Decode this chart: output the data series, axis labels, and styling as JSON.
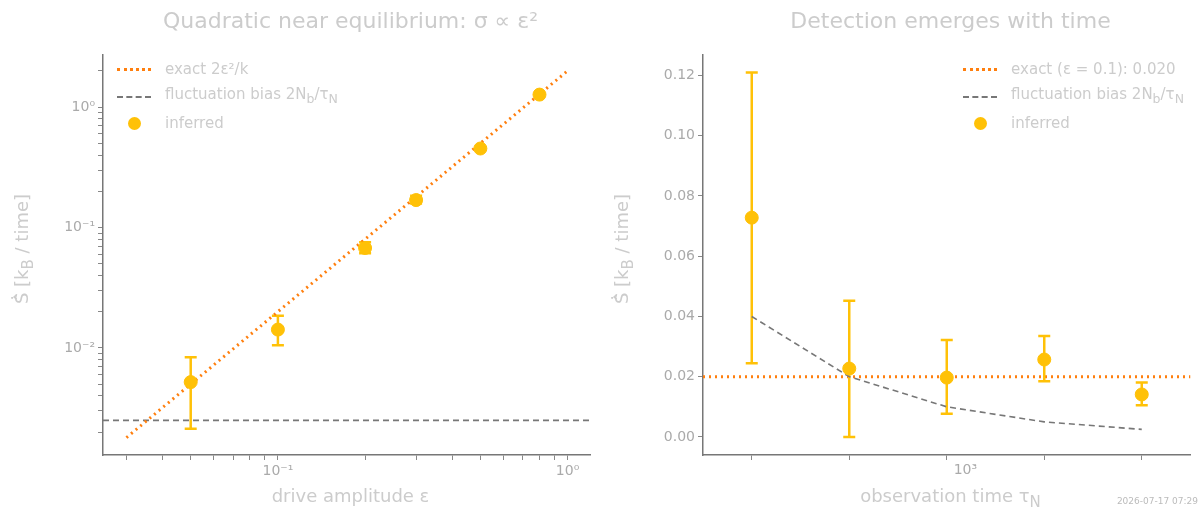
{
  "chart_data": [
    {
      "type": "scatter",
      "title": "Quadratic near equilibrium: σ ∝ ε²",
      "xlabel": "drive amplitude ε",
      "ylabel": "Ṡ̂ [k$_{B}$ / time]",
      "log": "xy",
      "grid": false,
      "legend": "top left",
      "xlim": [
        0.0249,
        1.2
      ],
      "ylim": [
        0.00129,
        2.74
      ],
      "xticks": [
        {
          "value": 0.03,
          "label": null
        },
        {
          "value": 0.04,
          "label": null
        },
        {
          "value": 0.05,
          "label": null
        },
        {
          "value": 0.06,
          "label": null
        },
        {
          "value": 0.07,
          "label": null
        },
        {
          "value": 0.08,
          "label": null
        },
        {
          "value": 0.09,
          "label": null
        },
        {
          "value": 0.1,
          "label": "10⁻¹"
        },
        {
          "value": 0.2,
          "label": null
        },
        {
          "value": 0.3,
          "label": null
        },
        {
          "value": 0.4,
          "label": null
        },
        {
          "value": 0.5,
          "label": null
        },
        {
          "value": 0.6,
          "label": null
        },
        {
          "value": 0.7,
          "label": null
        },
        {
          "value": 0.8,
          "label": null
        },
        {
          "value": 0.9,
          "label": null
        },
        {
          "value": 1,
          "label": "10⁰"
        }
      ],
      "yticks": [
        {
          "value": 0.002,
          "label": null
        },
        {
          "value": 0.003,
          "label": null
        },
        {
          "value": 0.004,
          "label": null
        },
        {
          "value": 0.005,
          "label": null
        },
        {
          "value": 0.006,
          "label": null
        },
        {
          "value": 0.007,
          "label": null
        },
        {
          "value": 0.008,
          "label": null
        },
        {
          "value": 0.009,
          "label": null
        },
        {
          "value": 0.01,
          "label": "10⁻²"
        },
        {
          "value": 0.02,
          "label": null
        },
        {
          "value": 0.03,
          "label": null
        },
        {
          "value": 0.04,
          "label": null
        },
        {
          "value": 0.05,
          "label": null
        },
        {
          "value": 0.06,
          "label": null
        },
        {
          "value": 0.07,
          "label": null
        },
        {
          "value": 0.08,
          "label": null
        },
        {
          "value": 0.09,
          "label": null
        },
        {
          "value": 0.1,
          "label": "10⁻¹"
        },
        {
          "value": 0.2,
          "label": null
        },
        {
          "value": 0.3,
          "label": null
        },
        {
          "value": 0.4,
          "label": null
        },
        {
          "value": 0.5,
          "label": null
        },
        {
          "value": 0.6,
          "label": null
        },
        {
          "value": 0.7,
          "label": null
        },
        {
          "value": 0.8,
          "label": null
        },
        {
          "value": 0.9,
          "label": null
        },
        {
          "value": 1,
          "label": "10⁰"
        },
        {
          "value": 2,
          "label": null
        }
      ],
      "ref_lines": [
        {
          "axis": "y",
          "value": 0.0025,
          "label": "fluctuation bias 2N$_{b}$/τ$_{N}$",
          "color": "#777777",
          "line_style": "dashed"
        }
      ],
      "series": [
        {
          "name": "exact 2ε²/k",
          "type": "line",
          "color": "#ff7f0e",
          "line_style": "dotted",
          "marker": "none",
          "x": [
            0.03,
            1
          ],
          "values": [
            0.0018,
            2
          ]
        },
        {
          "name": "inferred",
          "type": "scatter",
          "color": "#ffc107",
          "marker": "circle",
          "x": [
            0.05,
            0.1,
            0.2,
            0.3,
            0.5,
            0.8
          ],
          "values": [
            0.0052,
            0.0142,
            0.0676,
            0.169,
            0.453,
            1.27
          ],
          "errors": [
            [
              0.00213,
              0.00838
            ],
            [
              0.0105,
              0.0185
            ],
            [
              0.061,
              0.0755
            ],
            [
              0.158,
              0.184
            ],
            null,
            null
          ]
        }
      ]
    },
    {
      "type": "scatter",
      "title": "Detection emerges with time",
      "xlabel": "observation time τ$_{N}$",
      "ylabel": "Ṡ̂ [k$_{B}$ / time]",
      "grid": false,
      "legend": "top right",
      "categories": [
        null,
        null,
        null,
        null,
        null
      ],
      "ylim": [
        -0.006,
        0.127
      ],
      "yticks": [
        {
          "value": 0,
          "label": "0.00"
        },
        {
          "value": 0.02,
          "label": "0.02"
        },
        {
          "value": 0.04,
          "label": "0.04"
        },
        {
          "value": 0.06,
          "label": "0.06"
        },
        {
          "value": 0.08,
          "label": "0.08"
        },
        {
          "value": 0.1,
          "label": "0.10"
        },
        {
          "value": 0.12,
          "label": "0.12"
        }
      ],
      "ref_lines": [
        {
          "axis": "y",
          "value": 0.02,
          "label": "exact (ε = 0.1): 0.020",
          "color": "#ff7f0e",
          "line_style": "dotted"
        }
      ],
      "annotations": [
        "10³",
        "2026-07-17 07:29"
      ],
      "series": [
        {
          "name": "fluctuation bias 2N$_{b}$/τ$_{N}$",
          "type": "line",
          "color": "#777777",
          "line_style": "dashed",
          "marker": "none",
          "values": [
            0.04,
            0.02,
            0.01,
            0.005,
            0.0025
          ]
        },
        {
          "name": "inferred",
          "type": "scatter",
          "color": "#ffc107",
          "marker": "circle",
          "values": [
            0.0728,
            0.0227,
            0.0197,
            0.0257,
            0.0141
          ],
          "errors": [
            [
              0.0245,
              0.121
            ],
            [
              0,
              0.0452
            ],
            [
              0.0077,
              0.0322
            ],
            [
              0.0185,
              0.0335
            ],
            [
              0.0105,
              0.0181
            ]
          ]
        }
      ]
    }
  ]
}
